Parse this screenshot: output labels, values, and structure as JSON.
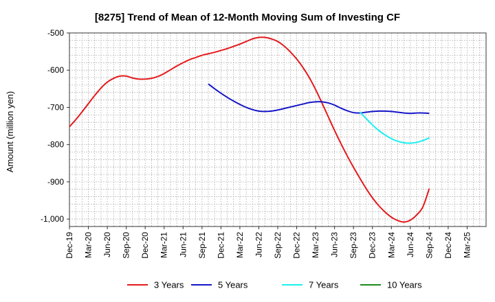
{
  "chart_data": {
    "type": "line",
    "title": "[8275]  Trend of Mean of 12-Month Moving Sum of Investing CF",
    "xlabel": "",
    "ylabel": "Amount (million yen)",
    "ylim": [
      -1020,
      -500
    ],
    "yticks": [
      -500,
      -600,
      -700,
      -800,
      -900,
      -1000
    ],
    "ytick_labels": [
      "-500",
      "-600",
      "-700",
      "-800",
      "-900",
      "-1,000"
    ],
    "x_range": [
      0,
      66
    ],
    "xtick_labels": [
      "Dec-19",
      "Mar-20",
      "Jun-20",
      "Sep-20",
      "Dec-20",
      "Mar-21",
      "Jun-21",
      "Sep-21",
      "Dec-21",
      "Mar-22",
      "Jun-22",
      "Sep-22",
      "Dec-22",
      "Mar-23",
      "Jun-23",
      "Sep-23",
      "Dec-23",
      "Mar-24",
      "Jun-24",
      "Sep-24",
      "Dec-24",
      "Mar-25"
    ],
    "x_unit": "months since Dec-19",
    "grid": true,
    "legend_position": "bottom",
    "series": [
      {
        "name": "3 Years",
        "color": "#e41a1c",
        "x": [
          0,
          1,
          2,
          3,
          4,
          5,
          6,
          7,
          8,
          9,
          10,
          11,
          12,
          13,
          14,
          15,
          16,
          17,
          18,
          19,
          20,
          21,
          22,
          23,
          24,
          25,
          26,
          27,
          28,
          29,
          30,
          31,
          32,
          33,
          34,
          35,
          36,
          37,
          38,
          39,
          40,
          41,
          42,
          43,
          44,
          45,
          46,
          47,
          48,
          49,
          50,
          51,
          52,
          53,
          54,
          55,
          56,
          57
        ],
        "values": [
          -752,
          -733,
          -712,
          -690,
          -668,
          -648,
          -632,
          -622,
          -616,
          -616,
          -621,
          -624,
          -624,
          -622,
          -617,
          -609,
          -599,
          -589,
          -580,
          -572,
          -566,
          -560,
          -556,
          -552,
          -547,
          -542,
          -536,
          -530,
          -523,
          -516,
          -512,
          -512,
          -516,
          -523,
          -535,
          -551,
          -570,
          -593,
          -620,
          -652,
          -688,
          -725,
          -762,
          -797,
          -830,
          -861,
          -890,
          -918,
          -943,
          -964,
          -981,
          -995,
          -1004,
          -1008,
          -1003,
          -989,
          -967,
          -918
        ]
      },
      {
        "name": "5 Years",
        "color": "#1515c8",
        "x": [
          22,
          23,
          24,
          25,
          26,
          27,
          28,
          29,
          30,
          31,
          32,
          33,
          34,
          35,
          36,
          37,
          38,
          39,
          40,
          41,
          42,
          43,
          44,
          45,
          46,
          47,
          48,
          49,
          50,
          51,
          52,
          53,
          54,
          55,
          56,
          57
        ],
        "values": [
          -637,
          -650,
          -662,
          -673,
          -683,
          -692,
          -700,
          -706,
          -710,
          -711,
          -710,
          -707,
          -703,
          -699,
          -695,
          -691,
          -687,
          -685,
          -685,
          -688,
          -694,
          -702,
          -709,
          -714,
          -715,
          -713,
          -711,
          -710,
          -710,
          -711,
          -713,
          -715,
          -716,
          -715,
          -715,
          -716
        ]
      },
      {
        "name": "7 Years",
        "color": "#19f0f0",
        "x": [
          46,
          47,
          48,
          49,
          50,
          51,
          52,
          53,
          54,
          55,
          56,
          57
        ],
        "values": [
          -712,
          -730,
          -747,
          -762,
          -774,
          -784,
          -791,
          -795,
          -796,
          -794,
          -789,
          -782
        ]
      },
      {
        "name": "10 Years",
        "color": "#1a8a1a",
        "x": [],
        "values": []
      }
    ]
  }
}
